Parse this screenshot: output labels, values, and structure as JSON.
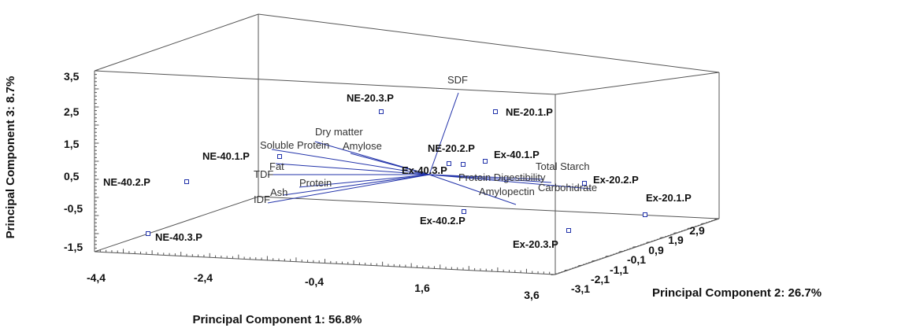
{
  "chart_data": {
    "type": "scatter",
    "subtype": "3d-biplot",
    "title": "",
    "x_axis": {
      "label": "Principal Component 1: 56.8%",
      "ticks": [
        "-4,4",
        "-2,4",
        "-0,4",
        "1,6",
        "3,6"
      ],
      "range": [
        -4.4,
        3.6
      ]
    },
    "y_axis": {
      "label": "Principal Component 2: 26.7%",
      "ticks": [
        "-3,1",
        "-2,1",
        "-1,1",
        "-0,1",
        "0,9",
        "1,9",
        "2,9"
      ],
      "range": [
        -3.1,
        2.9
      ]
    },
    "z_axis": {
      "label": "Principal Component 3: 8.7%",
      "ticks": [
        "-1,5",
        "-0,5",
        "0,5",
        "1,5",
        "2,5",
        "3,5"
      ],
      "range": [
        -1.5,
        3.5
      ]
    },
    "observations": [
      {
        "name": "NE-20.3.P"
      },
      {
        "name": "NE-20.1.P"
      },
      {
        "name": "NE-20.2.P"
      },
      {
        "name": "Ex-40.1.P"
      },
      {
        "name": "NE-40.1.P"
      },
      {
        "name": "Ex-40.3.P"
      },
      {
        "name": "NE-40.2.P"
      },
      {
        "name": "Ex-20.2.P"
      },
      {
        "name": "Ex-20.1.P"
      },
      {
        "name": "Ex-40.2.P"
      },
      {
        "name": "Ex-20.3.P"
      },
      {
        "name": "NE-40.3.P"
      }
    ],
    "variables": [
      {
        "name": "SDF"
      },
      {
        "name": "Dry matter"
      },
      {
        "name": "Soluble Protein"
      },
      {
        "name": "Amylose"
      },
      {
        "name": "Fat"
      },
      {
        "name": "TDF"
      },
      {
        "name": "Protein"
      },
      {
        "name": "Ash"
      },
      {
        "name": "IDF"
      },
      {
        "name": "Total Starch"
      },
      {
        "name": "Protein Digestibility"
      },
      {
        "name": "Carbohidrate"
      },
      {
        "name": "Amylopectin"
      }
    ],
    "grid": false,
    "legend": "none"
  }
}
